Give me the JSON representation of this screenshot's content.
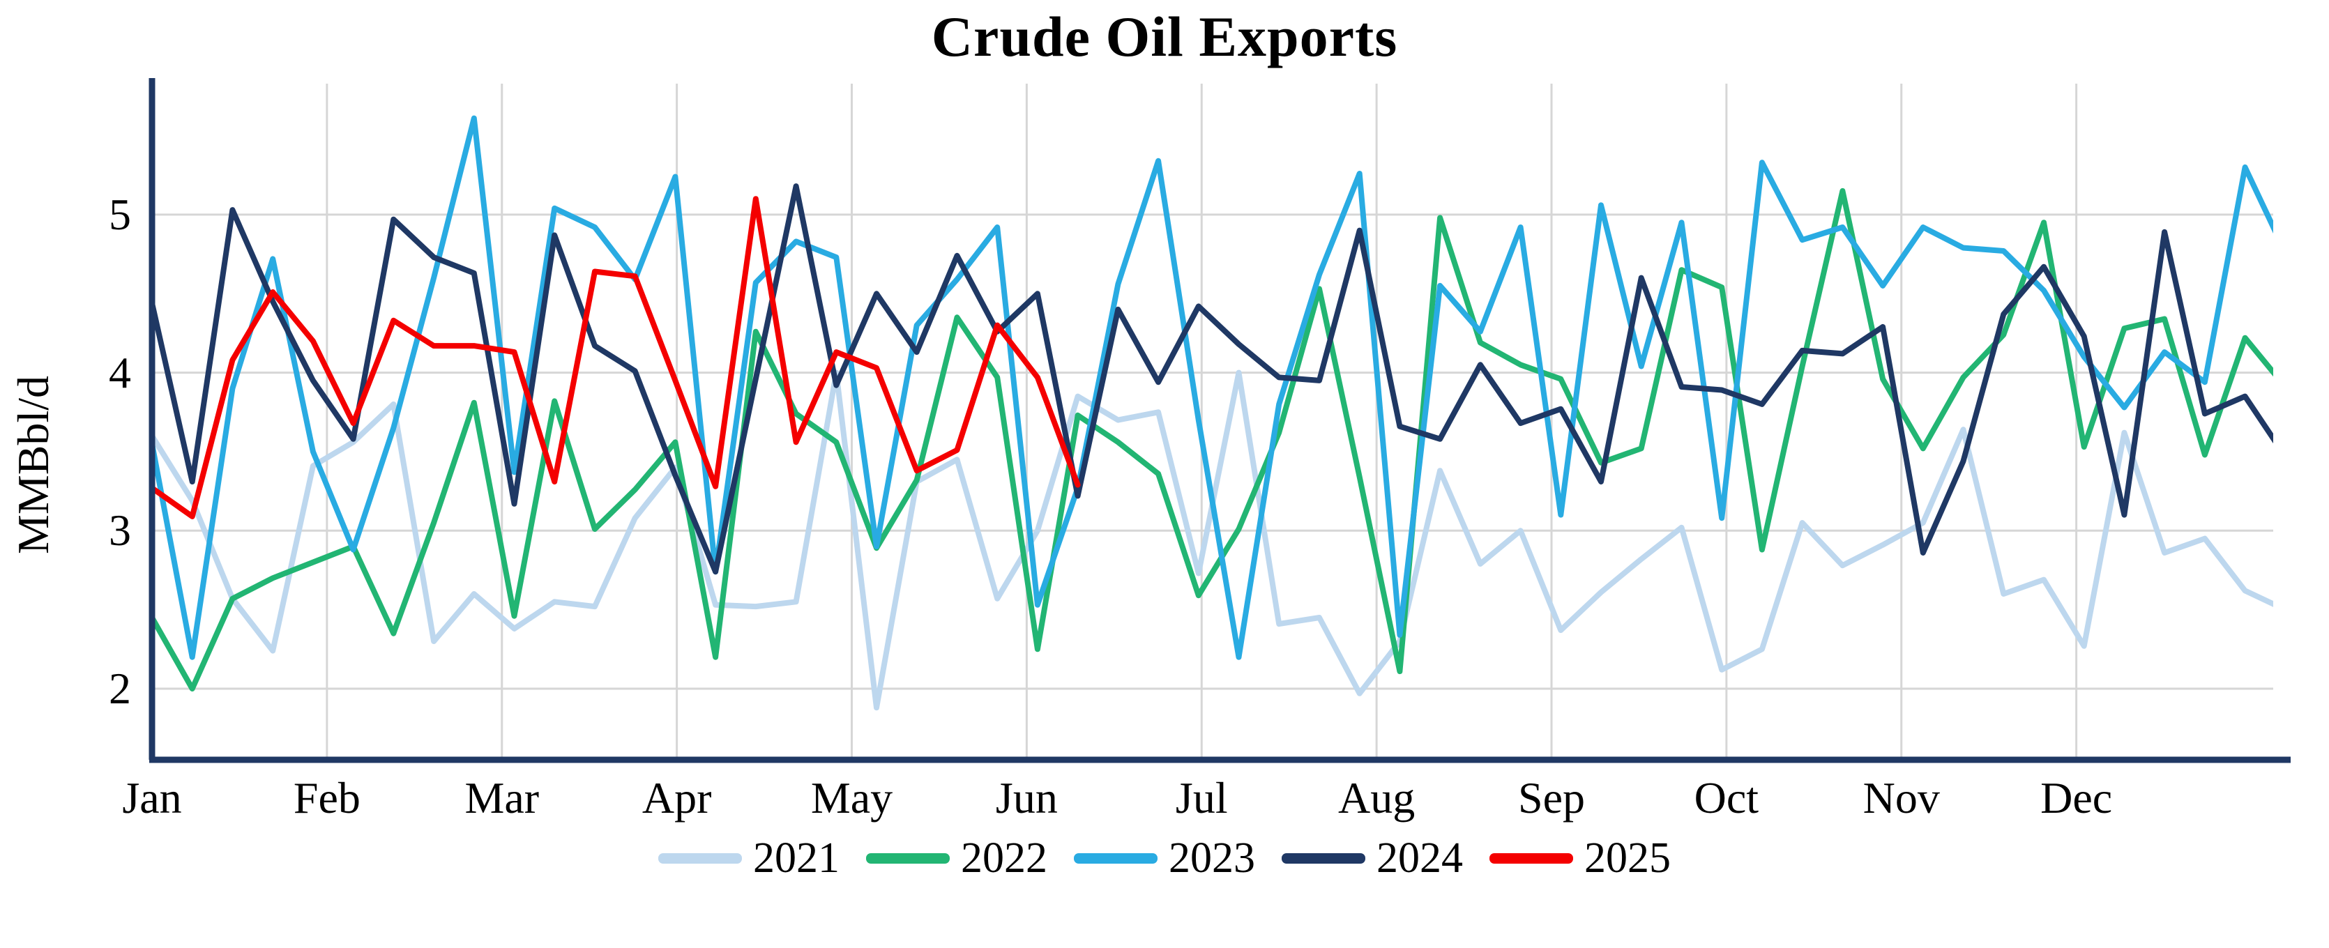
{
  "title": "Crude Oil Exports",
  "chart_data": {
    "type": "line",
    "title": "Crude Oil Exports",
    "xlabel": "",
    "ylabel": "MMBbl/d",
    "x_unit": "week of year (weekly data, Jan-Dec overlay)",
    "x_tick_labels": [
      "Jan",
      "Feb",
      "Mar",
      "Apr",
      "May",
      "Jun",
      "Jul",
      "Aug",
      "Sep",
      "Oct",
      "Nov",
      "Dec"
    ],
    "y_ticks": [
      2,
      3,
      4,
      5
    ],
    "ylim": [
      1.55,
      5.83
    ],
    "grid": true,
    "legend_position": "bottom-center",
    "background_color": "#ffffff",
    "gridline_color": "#d6d6d6",
    "axis_color": "#1f3864",
    "series": [
      {
        "name": "2021",
        "color": "#bdd7ee",
        "values": [
          3.6,
          3.19,
          2.57,
          2.24,
          3.41,
          3.56,
          3.8,
          2.3,
          2.6,
          2.38,
          2.55,
          2.52,
          3.08,
          3.4,
          2.53,
          2.52,
          2.55,
          4.0,
          1.88,
          3.31,
          3.45,
          2.57,
          3.0,
          3.85,
          3.7,
          3.75,
          2.73,
          4.0,
          2.41,
          2.45,
          1.97,
          2.3,
          3.38,
          2.79,
          3.0,
          2.37,
          2.61,
          2.82,
          3.02,
          2.12,
          2.25,
          3.05,
          2.78,
          2.91,
          3.05,
          3.64,
          2.6,
          2.69,
          2.27,
          3.62,
          2.86,
          2.95,
          2.62,
          2.5
        ]
      },
      {
        "name": "2022",
        "color": "#22b573",
        "values": [
          2.45,
          2.0,
          2.57,
          2.7,
          2.8,
          2.9,
          2.35,
          3.05,
          3.81,
          2.46,
          3.82,
          3.01,
          3.26,
          3.56,
          2.2,
          4.26,
          3.74,
          3.56,
          2.89,
          3.32,
          4.35,
          3.97,
          2.25,
          3.73,
          3.56,
          3.36,
          2.59,
          3.01,
          3.62,
          4.53,
          3.34,
          2.11,
          4.98,
          4.19,
          4.05,
          3.96,
          3.43,
          3.52,
          4.65,
          4.54,
          2.88,
          4.04,
          5.15,
          3.96,
          3.52,
          3.97,
          4.24,
          4.95,
          3.53,
          4.28,
          4.34,
          3.48,
          4.22,
          3.91
        ]
      },
      {
        "name": "2023",
        "color": "#29abe2",
        "values": [
          3.55,
          2.2,
          3.9,
          4.72,
          3.5,
          2.88,
          3.65,
          4.6,
          5.61,
          3.37,
          5.04,
          4.92,
          4.59,
          5.24,
          2.74,
          4.57,
          4.83,
          4.73,
          2.9,
          4.3,
          4.59,
          4.92,
          2.53,
          3.27,
          4.56,
          5.34,
          3.7,
          2.2,
          3.8,
          4.62,
          5.26,
          2.34,
          4.55,
          4.26,
          4.92,
          3.1,
          5.06,
          4.04,
          4.95,
          3.08,
          5.33,
          4.84,
          4.92,
          4.55,
          4.92,
          4.79,
          4.77,
          4.52,
          4.1,
          3.78,
          4.13,
          3.94,
          5.3,
          4.76
        ]
      },
      {
        "name": "2024",
        "color": "#1f3864",
        "values": [
          4.44,
          3.31,
          5.03,
          4.45,
          3.95,
          3.58,
          4.97,
          4.73,
          4.63,
          3.17,
          4.87,
          4.17,
          4.01,
          3.35,
          2.74,
          3.96,
          5.18,
          3.92,
          4.5,
          4.13,
          4.74,
          4.26,
          4.5,
          3.22,
          4.4,
          3.94,
          4.42,
          4.18,
          3.97,
          3.95,
          4.9,
          3.66,
          3.58,
          4.05,
          3.68,
          3.77,
          3.31,
          4.6,
          3.91,
          3.89,
          3.8,
          4.14,
          4.12,
          4.29,
          2.86,
          3.44,
          4.37,
          4.67,
          4.23,
          3.1,
          4.89,
          3.74,
          3.85,
          3.47
        ]
      },
      {
        "name": "2025",
        "color": "#f40000",
        "values": [
          3.27,
          3.09,
          4.08,
          4.51,
          4.2,
          3.68,
          4.33,
          4.17,
          4.17,
          4.13,
          3.31,
          4.64,
          4.61,
          3.95,
          3.28,
          5.1,
          3.56,
          4.13,
          4.03,
          3.38,
          3.51,
          4.3,
          3.97,
          3.29
        ]
      }
    ]
  },
  "axes": {
    "y_label": "MMBbl/d",
    "y_tick_labels": [
      "5",
      "4",
      "3",
      "2"
    ],
    "x_tick_labels": [
      "Jan",
      "Feb",
      "Mar",
      "Apr",
      "May",
      "Jun",
      "Jul",
      "Aug",
      "Sep",
      "Oct",
      "Nov",
      "Dec"
    ]
  },
  "legend": {
    "items": [
      {
        "label": "2021",
        "color": "#bdd7ee"
      },
      {
        "label": "2022",
        "color": "#22b573"
      },
      {
        "label": "2023",
        "color": "#29abe2"
      },
      {
        "label": "2024",
        "color": "#1f3864"
      },
      {
        "label": "2025",
        "color": "#f40000"
      }
    ]
  }
}
